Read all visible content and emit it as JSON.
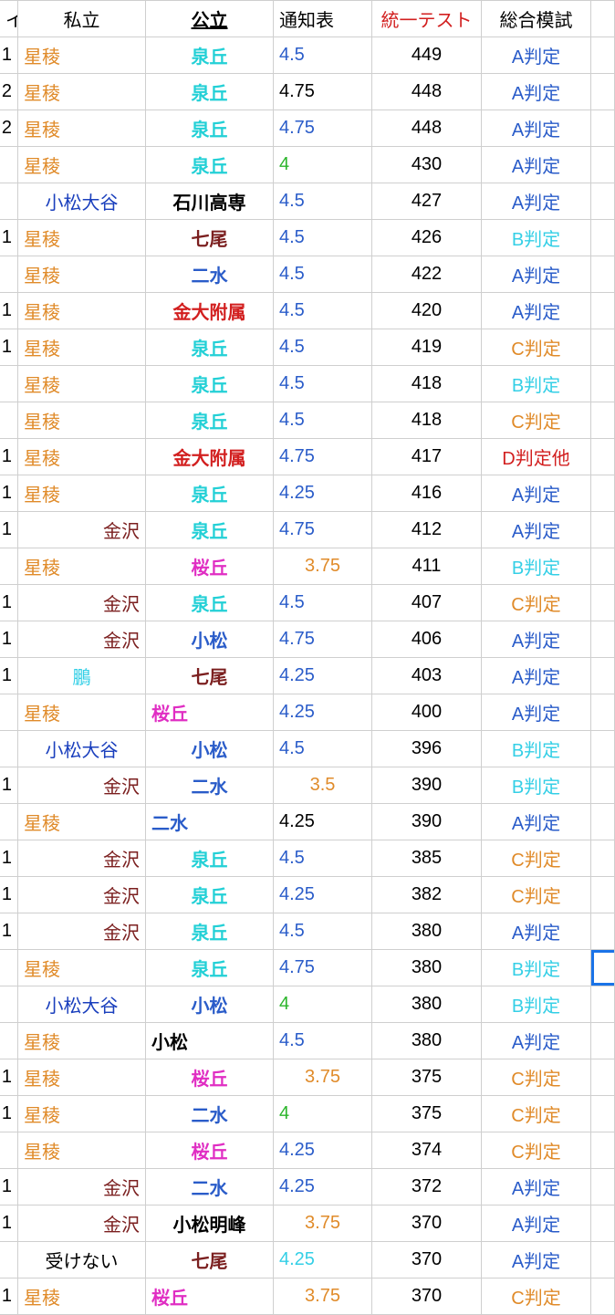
{
  "colors": {
    "orange": "#e08b2a",
    "navy": "#1a3fbd",
    "black": "#000000",
    "teal": "#23d0d6",
    "maroon": "#7b1f1f",
    "blue": "#2a5cc9",
    "red": "#d21f1f",
    "magenta": "#e02ec3",
    "green": "#2bb52b",
    "lightblue": "#34cfe6",
    "gridline": "#cfcfcf",
    "header_red": "#d21f1f",
    "selection": "#1a73e8"
  },
  "header": {
    "col0": "イ",
    "col1": "私立",
    "col2": "公立",
    "col3": "通知表",
    "col4": "統一テスト",
    "col5": "総合模試"
  },
  "rows": [
    {
      "idx": "1",
      "c1": {
        "t": "星稜",
        "c": "orange",
        "a": "left"
      },
      "c2": {
        "t": "泉丘",
        "c": "teal",
        "a": "center",
        "b": true
      },
      "c3": {
        "t": "4.5",
        "c": "blue",
        "a": "left"
      },
      "c4": {
        "t": "449",
        "c": "black",
        "a": "center"
      },
      "c5": {
        "t": "A判定",
        "c": "blue",
        "a": "center"
      }
    },
    {
      "idx": "2",
      "c1": {
        "t": "星稜",
        "c": "orange",
        "a": "left"
      },
      "c2": {
        "t": "泉丘",
        "c": "teal",
        "a": "center",
        "b": true
      },
      "c3": {
        "t": "4.75",
        "c": "black",
        "a": "left"
      },
      "c4": {
        "t": "448",
        "c": "black",
        "a": "center"
      },
      "c5": {
        "t": "A判定",
        "c": "blue",
        "a": "center"
      }
    },
    {
      "idx": "2",
      "c1": {
        "t": "星稜",
        "c": "orange",
        "a": "left"
      },
      "c2": {
        "t": "泉丘",
        "c": "teal",
        "a": "center",
        "b": true
      },
      "c3": {
        "t": "4.75",
        "c": "blue",
        "a": "left"
      },
      "c4": {
        "t": "448",
        "c": "black",
        "a": "center"
      },
      "c5": {
        "t": "A判定",
        "c": "blue",
        "a": "center"
      }
    },
    {
      "idx": "",
      "c1": {
        "t": "星稜",
        "c": "orange",
        "a": "left"
      },
      "c2": {
        "t": "泉丘",
        "c": "teal",
        "a": "center",
        "b": true
      },
      "c3": {
        "t": "4",
        "c": "green",
        "a": "left"
      },
      "c4": {
        "t": "430",
        "c": "black",
        "a": "center"
      },
      "c5": {
        "t": "A判定",
        "c": "blue",
        "a": "center"
      }
    },
    {
      "idx": "",
      "c1": {
        "t": "小松大谷",
        "c": "navy",
        "a": "center"
      },
      "c2": {
        "t": "石川高専",
        "c": "black",
        "a": "center",
        "b": true
      },
      "c3": {
        "t": "4.5",
        "c": "blue",
        "a": "left"
      },
      "c4": {
        "t": "427",
        "c": "black",
        "a": "center"
      },
      "c5": {
        "t": "A判定",
        "c": "blue",
        "a": "center"
      }
    },
    {
      "idx": "1",
      "c1": {
        "t": "星稜",
        "c": "orange",
        "a": "left"
      },
      "c2": {
        "t": "七尾",
        "c": "maroon",
        "a": "center",
        "b": true
      },
      "c3": {
        "t": "4.5",
        "c": "blue",
        "a": "left"
      },
      "c4": {
        "t": "426",
        "c": "black",
        "a": "center"
      },
      "c5": {
        "t": "B判定",
        "c": "lightblue",
        "a": "center"
      }
    },
    {
      "idx": "",
      "c1": {
        "t": "星稜",
        "c": "orange",
        "a": "left"
      },
      "c2": {
        "t": "二水",
        "c": "blue",
        "a": "center",
        "b": true
      },
      "c3": {
        "t": "4.5",
        "c": "blue",
        "a": "left"
      },
      "c4": {
        "t": "422",
        "c": "black",
        "a": "center"
      },
      "c5": {
        "t": "A判定",
        "c": "blue",
        "a": "center"
      }
    },
    {
      "idx": "1",
      "c1": {
        "t": "星稜",
        "c": "orange",
        "a": "left"
      },
      "c2": {
        "t": "金大附属",
        "c": "red",
        "a": "center",
        "b": true
      },
      "c3": {
        "t": "4.5",
        "c": "blue",
        "a": "left"
      },
      "c4": {
        "t": "420",
        "c": "black",
        "a": "center"
      },
      "c5": {
        "t": "A判定",
        "c": "blue",
        "a": "center"
      }
    },
    {
      "idx": "1",
      "c1": {
        "t": "星稜",
        "c": "orange",
        "a": "left"
      },
      "c2": {
        "t": "泉丘",
        "c": "teal",
        "a": "center",
        "b": true
      },
      "c3": {
        "t": "4.5",
        "c": "blue",
        "a": "left"
      },
      "c4": {
        "t": "419",
        "c": "black",
        "a": "center"
      },
      "c5": {
        "t": "C判定",
        "c": "orange",
        "a": "center"
      }
    },
    {
      "idx": "",
      "c1": {
        "t": "星稜",
        "c": "orange",
        "a": "left"
      },
      "c2": {
        "t": "泉丘",
        "c": "teal",
        "a": "center",
        "b": true
      },
      "c3": {
        "t": "4.5",
        "c": "blue",
        "a": "left"
      },
      "c4": {
        "t": "418",
        "c": "black",
        "a": "center"
      },
      "c5": {
        "t": "B判定",
        "c": "lightblue",
        "a": "center"
      }
    },
    {
      "idx": "",
      "c1": {
        "t": "星稜",
        "c": "orange",
        "a": "left"
      },
      "c2": {
        "t": "泉丘",
        "c": "teal",
        "a": "center",
        "b": true
      },
      "c3": {
        "t": "4.5",
        "c": "blue",
        "a": "left"
      },
      "c4": {
        "t": "418",
        "c": "black",
        "a": "center"
      },
      "c5": {
        "t": "C判定",
        "c": "orange",
        "a": "center"
      }
    },
    {
      "idx": "1",
      "c1": {
        "t": "星稜",
        "c": "orange",
        "a": "left"
      },
      "c2": {
        "t": "金大附属",
        "c": "red",
        "a": "center",
        "b": true
      },
      "c3": {
        "t": "4.75",
        "c": "blue",
        "a": "left"
      },
      "c4": {
        "t": "417",
        "c": "black",
        "a": "center"
      },
      "c5": {
        "t": "D判定他",
        "c": "red",
        "a": "center"
      }
    },
    {
      "idx": "1",
      "c1": {
        "t": "星稜",
        "c": "orange",
        "a": "left"
      },
      "c2": {
        "t": "泉丘",
        "c": "teal",
        "a": "center",
        "b": true
      },
      "c3": {
        "t": "4.25",
        "c": "blue",
        "a": "left"
      },
      "c4": {
        "t": "416",
        "c": "black",
        "a": "center"
      },
      "c5": {
        "t": "A判定",
        "c": "blue",
        "a": "center"
      }
    },
    {
      "idx": "1",
      "c1": {
        "t": "金沢",
        "c": "maroon",
        "a": "right"
      },
      "c2": {
        "t": "泉丘",
        "c": "teal",
        "a": "center",
        "b": true
      },
      "c3": {
        "t": "4.75",
        "c": "blue",
        "a": "left"
      },
      "c4": {
        "t": "412",
        "c": "black",
        "a": "center"
      },
      "c5": {
        "t": "A判定",
        "c": "blue",
        "a": "center"
      }
    },
    {
      "idx": "",
      "c1": {
        "t": "星稜",
        "c": "orange",
        "a": "left"
      },
      "c2": {
        "t": "桜丘",
        "c": "magenta",
        "a": "center",
        "b": true
      },
      "c3": {
        "t": "3.75",
        "c": "orange",
        "a": "center"
      },
      "c4": {
        "t": "411",
        "c": "black",
        "a": "center"
      },
      "c5": {
        "t": "B判定",
        "c": "lightblue",
        "a": "center"
      }
    },
    {
      "idx": "1",
      "c1": {
        "t": "金沢",
        "c": "maroon",
        "a": "right"
      },
      "c2": {
        "t": "泉丘",
        "c": "teal",
        "a": "center",
        "b": true
      },
      "c3": {
        "t": "4.5",
        "c": "blue",
        "a": "left"
      },
      "c4": {
        "t": "407",
        "c": "black",
        "a": "center"
      },
      "c5": {
        "t": "C判定",
        "c": "orange",
        "a": "center"
      }
    },
    {
      "idx": "1",
      "c1": {
        "t": "金沢",
        "c": "maroon",
        "a": "right"
      },
      "c2": {
        "t": "小松",
        "c": "blue",
        "a": "center",
        "b": true
      },
      "c3": {
        "t": "4.75",
        "c": "blue",
        "a": "left"
      },
      "c4": {
        "t": "406",
        "c": "black",
        "a": "center"
      },
      "c5": {
        "t": "A判定",
        "c": "blue",
        "a": "center"
      }
    },
    {
      "idx": "1",
      "c1": {
        "t": "鵬",
        "c": "lightblue",
        "a": "center"
      },
      "c2": {
        "t": "七尾",
        "c": "maroon",
        "a": "center",
        "b": true
      },
      "c3": {
        "t": "4.25",
        "c": "blue",
        "a": "left"
      },
      "c4": {
        "t": "403",
        "c": "black",
        "a": "center"
      },
      "c5": {
        "t": "A判定",
        "c": "blue",
        "a": "center"
      }
    },
    {
      "idx": "",
      "c1": {
        "t": "星稜",
        "c": "orange",
        "a": "left"
      },
      "c2": {
        "t": "桜丘",
        "c": "magenta",
        "a": "left",
        "b": true
      },
      "c3": {
        "t": "4.25",
        "c": "blue",
        "a": "left"
      },
      "c4": {
        "t": "400",
        "c": "black",
        "a": "center"
      },
      "c5": {
        "t": "A判定",
        "c": "blue",
        "a": "center"
      }
    },
    {
      "idx": "",
      "c1": {
        "t": "小松大谷",
        "c": "navy",
        "a": "center"
      },
      "c2": {
        "t": "小松",
        "c": "blue",
        "a": "center",
        "b": true
      },
      "c3": {
        "t": "4.5",
        "c": "blue",
        "a": "left"
      },
      "c4": {
        "t": "396",
        "c": "black",
        "a": "center"
      },
      "c5": {
        "t": "B判定",
        "c": "lightblue",
        "a": "center"
      }
    },
    {
      "idx": "1",
      "c1": {
        "t": "金沢",
        "c": "maroon",
        "a": "right"
      },
      "c2": {
        "t": "二水",
        "c": "blue",
        "a": "center",
        "b": true
      },
      "c3": {
        "t": "3.5",
        "c": "orange",
        "a": "center"
      },
      "c4": {
        "t": "390",
        "c": "black",
        "a": "center"
      },
      "c5": {
        "t": "B判定",
        "c": "lightblue",
        "a": "center"
      }
    },
    {
      "idx": "",
      "c1": {
        "t": "星稜",
        "c": "orange",
        "a": "left"
      },
      "c2": {
        "t": "二水",
        "c": "blue",
        "a": "left",
        "b": true
      },
      "c3": {
        "t": "4.25",
        "c": "black",
        "a": "left"
      },
      "c4": {
        "t": "390",
        "c": "black",
        "a": "center"
      },
      "c5": {
        "t": "A判定",
        "c": "blue",
        "a": "center"
      }
    },
    {
      "idx": "1",
      "c1": {
        "t": "金沢",
        "c": "maroon",
        "a": "right"
      },
      "c2": {
        "t": "泉丘",
        "c": "teal",
        "a": "center",
        "b": true
      },
      "c3": {
        "t": "4.5",
        "c": "blue",
        "a": "left"
      },
      "c4": {
        "t": "385",
        "c": "black",
        "a": "center"
      },
      "c5": {
        "t": "C判定",
        "c": "orange",
        "a": "center"
      }
    },
    {
      "idx": "1",
      "c1": {
        "t": "金沢",
        "c": "maroon",
        "a": "right"
      },
      "c2": {
        "t": "泉丘",
        "c": "teal",
        "a": "center",
        "b": true
      },
      "c3": {
        "t": "4.25",
        "c": "blue",
        "a": "left"
      },
      "c4": {
        "t": "382",
        "c": "black",
        "a": "center"
      },
      "c5": {
        "t": "C判定",
        "c": "orange",
        "a": "center"
      }
    },
    {
      "idx": "1",
      "c1": {
        "t": "金沢",
        "c": "maroon",
        "a": "right"
      },
      "c2": {
        "t": "泉丘",
        "c": "teal",
        "a": "center",
        "b": true
      },
      "c3": {
        "t": "4.5",
        "c": "blue",
        "a": "left"
      },
      "c4": {
        "t": "380",
        "c": "black",
        "a": "center"
      },
      "c5": {
        "t": "A判定",
        "c": "blue",
        "a": "center"
      }
    },
    {
      "idx": "",
      "c1": {
        "t": "星稜",
        "c": "orange",
        "a": "left"
      },
      "c2": {
        "t": "泉丘",
        "c": "teal",
        "a": "center",
        "b": true
      },
      "c3": {
        "t": "4.75",
        "c": "blue",
        "a": "left"
      },
      "c4": {
        "t": "380",
        "c": "black",
        "a": "center"
      },
      "c5": {
        "t": "B判定",
        "c": "lightblue",
        "a": "center"
      },
      "sel": true
    },
    {
      "idx": "",
      "c1": {
        "t": "小松大谷",
        "c": "navy",
        "a": "center"
      },
      "c2": {
        "t": "小松",
        "c": "blue",
        "a": "center",
        "b": true
      },
      "c3": {
        "t": "4",
        "c": "green",
        "a": "left"
      },
      "c4": {
        "t": "380",
        "c": "black",
        "a": "center"
      },
      "c5": {
        "t": "B判定",
        "c": "lightblue",
        "a": "center"
      }
    },
    {
      "idx": "",
      "c1": {
        "t": "星稜",
        "c": "orange",
        "a": "left"
      },
      "c2": {
        "t": "小松",
        "c": "black",
        "a": "left",
        "b": true
      },
      "c3": {
        "t": "4.5",
        "c": "blue",
        "a": "left"
      },
      "c4": {
        "t": "380",
        "c": "black",
        "a": "center"
      },
      "c5": {
        "t": "A判定",
        "c": "blue",
        "a": "center"
      }
    },
    {
      "idx": "1",
      "c1": {
        "t": "星稜",
        "c": "orange",
        "a": "left"
      },
      "c2": {
        "t": "桜丘",
        "c": "magenta",
        "a": "center",
        "b": true
      },
      "c3": {
        "t": "3.75",
        "c": "orange",
        "a": "center"
      },
      "c4": {
        "t": "375",
        "c": "black",
        "a": "center"
      },
      "c5": {
        "t": "C判定",
        "c": "orange",
        "a": "center"
      }
    },
    {
      "idx": "1",
      "c1": {
        "t": "星稜",
        "c": "orange",
        "a": "left"
      },
      "c2": {
        "t": "二水",
        "c": "blue",
        "a": "center",
        "b": true
      },
      "c3": {
        "t": "4",
        "c": "green",
        "a": "left"
      },
      "c4": {
        "t": "375",
        "c": "black",
        "a": "center"
      },
      "c5": {
        "t": "C判定",
        "c": "orange",
        "a": "center"
      }
    },
    {
      "idx": "",
      "c1": {
        "t": "星稜",
        "c": "orange",
        "a": "left"
      },
      "c2": {
        "t": "桜丘",
        "c": "magenta",
        "a": "center",
        "b": true
      },
      "c3": {
        "t": "4.25",
        "c": "blue",
        "a": "left"
      },
      "c4": {
        "t": "374",
        "c": "black",
        "a": "center"
      },
      "c5": {
        "t": "C判定",
        "c": "orange",
        "a": "center"
      }
    },
    {
      "idx": "1",
      "c1": {
        "t": "金沢",
        "c": "maroon",
        "a": "right"
      },
      "c2": {
        "t": "二水",
        "c": "blue",
        "a": "center",
        "b": true
      },
      "c3": {
        "t": "4.25",
        "c": "blue",
        "a": "left"
      },
      "c4": {
        "t": "372",
        "c": "black",
        "a": "center"
      },
      "c5": {
        "t": "A判定",
        "c": "blue",
        "a": "center"
      }
    },
    {
      "idx": "1",
      "c1": {
        "t": "金沢",
        "c": "maroon",
        "a": "right"
      },
      "c2": {
        "t": "小松明峰",
        "c": "black",
        "a": "center",
        "b": true
      },
      "c3": {
        "t": "3.75",
        "c": "orange",
        "a": "center"
      },
      "c4": {
        "t": "370",
        "c": "black",
        "a": "center"
      },
      "c5": {
        "t": "A判定",
        "c": "blue",
        "a": "center"
      }
    },
    {
      "idx": "",
      "c1": {
        "t": "受けない",
        "c": "black",
        "a": "center"
      },
      "c2": {
        "t": "七尾",
        "c": "maroon",
        "a": "center",
        "b": true
      },
      "c3": {
        "t": "4.25",
        "c": "lightblue",
        "a": "left"
      },
      "c4": {
        "t": "370",
        "c": "black",
        "a": "center"
      },
      "c5": {
        "t": "A判定",
        "c": "blue",
        "a": "center"
      }
    },
    {
      "idx": "1",
      "c1": {
        "t": "星稜",
        "c": "orange",
        "a": "left"
      },
      "c2": {
        "t": "桜丘",
        "c": "magenta",
        "a": "left",
        "b": true
      },
      "c3": {
        "t": "3.75",
        "c": "orange",
        "a": "center"
      },
      "c4": {
        "t": "370",
        "c": "black",
        "a": "center"
      },
      "c5": {
        "t": "C判定",
        "c": "orange",
        "a": "center"
      }
    }
  ]
}
